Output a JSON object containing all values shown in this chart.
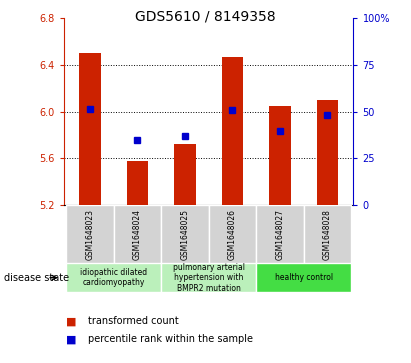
{
  "title": "GDS5610 / 8149358",
  "samples": [
    "GSM1648023",
    "GSM1648024",
    "GSM1648025",
    "GSM1648026",
    "GSM1648027",
    "GSM1648028"
  ],
  "transformed_count": [
    6.5,
    5.58,
    5.72,
    6.47,
    6.05,
    6.1
  ],
  "percentile_rank": [
    6.02,
    5.76,
    5.79,
    6.01,
    5.83,
    5.97
  ],
  "ylim_left": [
    5.2,
    6.8
  ],
  "ylim_right": [
    0,
    100
  ],
  "yticks_left": [
    5.2,
    5.6,
    6.0,
    6.4,
    6.8
  ],
  "yticks_right": [
    0,
    25,
    50,
    75,
    100
  ],
  "bar_color": "#cc2200",
  "dot_color": "#0000cc",
  "axis_left_color": "#cc2200",
  "axis_right_color": "#0000cc",
  "group_spans": [
    {
      "start": 0,
      "end": 1,
      "label": "idiopathic dilated\ncardiomyopathy",
      "color": "#bbf0bb"
    },
    {
      "start": 2,
      "end": 3,
      "label": "pulmonary arterial\nhypertension with\nBMPR2 mutation",
      "color": "#bbf0bb"
    },
    {
      "start": 4,
      "end": 5,
      "label": "healthy control",
      "color": "#44dd44"
    }
  ],
  "legend_items": [
    {
      "label": "transformed count",
      "color": "#cc2200"
    },
    {
      "label": "percentile rank within the sample",
      "color": "#0000cc"
    }
  ],
  "disease_state_label": "disease state",
  "bar_width": 0.45,
  "tick_label_fontsize": 7,
  "title_fontsize": 10,
  "sample_fontsize": 5.5,
  "disease_fontsize": 5.5,
  "legend_fontsize": 7
}
